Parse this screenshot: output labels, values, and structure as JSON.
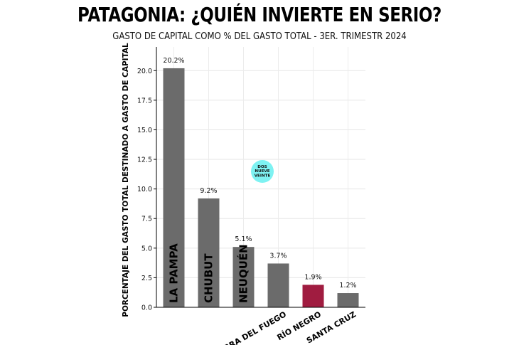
{
  "chart_data": {
    "type": "bar",
    "title": "PATAGONIA: ¿QUIÉN INVIERTE EN SERIO?",
    "subtitle": "GASTO DE CAPITAL COMO % DEL GASTO TOTAL - 3ER. TRIMESTR 2024",
    "ylabel": "PORCENTAJE DEL GASTO TOTAL DESTINADO A GASTO DE CAPITAL",
    "xlabel": "",
    "ylim": [
      0,
      22
    ],
    "yticks": [
      "0.0",
      "2.5",
      "5.0",
      "7.5",
      "10.0",
      "12.5",
      "15.0",
      "17.5",
      "20.0"
    ],
    "ytick_values": [
      0,
      2.5,
      5,
      7.5,
      10,
      12.5,
      15,
      17.5,
      20
    ],
    "grid": true,
    "categories": [
      "LA PAMPA",
      "CHUBUT",
      "NEUQUÉN",
      "TIERRA DEL FUEGO",
      "RÍO NEGRO",
      "SANTA CRUZ"
    ],
    "values": [
      20.2,
      9.2,
      5.1,
      3.7,
      1.9,
      1.2
    ],
    "data_labels": [
      "20.2%",
      "9.2%",
      "5.1%",
      "3.7%",
      "1.9%",
      "1.2%"
    ],
    "label_inside_bar": [
      true,
      true,
      true,
      false,
      false,
      false
    ],
    "bar_colors": [
      "#6b6b6b",
      "#6b6b6b",
      "#6b6b6b",
      "#6b6b6b",
      "#a01c40",
      "#6b6b6b"
    ]
  },
  "logo": {
    "lines": [
      "DOS",
      "NUEVE",
      "VEINTE"
    ],
    "color": "#7ef2f2"
  }
}
